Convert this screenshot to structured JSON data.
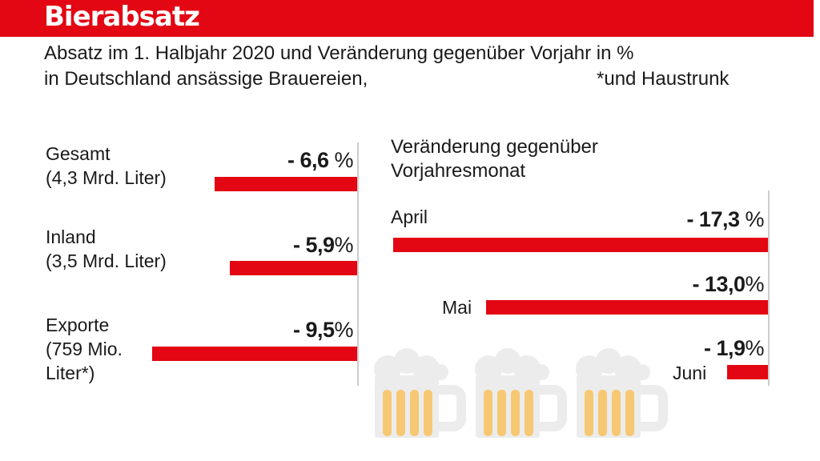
{
  "title": "Bierabsatz",
  "subtitle_line1": "Absatz im 1. Halbjahr 2020 und Veränderung gegenüber Vorjahr in %",
  "subtitle_line2": "in Deutschland ansässige Brauereien,",
  "subtitle_note": "*und Haustrunk",
  "colors": {
    "accent": "#e30613",
    "beer": "#f7c873",
    "foam": "#ececec"
  },
  "icons": [
    "beer-mug-icon",
    "beer-mug-icon",
    "beer-mug-icon"
  ],
  "chart_data": [
    {
      "type": "bar",
      "orientation": "horizontal",
      "categories": [
        "Gesamt (4,3 Mrd. Liter)",
        "Inland (3,5 Mrd. Liter)",
        "Exporte (759 Mio. Liter*)"
      ],
      "category_lines": [
        [
          "Gesamt",
          "(4,3 Mrd. Liter)"
        ],
        [
          "Inland",
          "(3,5 Mrd. Liter)"
        ],
        [
          "Exporte",
          "(759 Mio.",
          "Liter*)"
        ]
      ],
      "values": [
        -6.6,
        -5.9,
        -9.5
      ],
      "value_labels": [
        "- 6,6",
        "- 5,9",
        "- 9,5"
      ],
      "value_units": [
        " %",
        "%",
        "%"
      ],
      "title": ""
    },
    {
      "type": "bar",
      "orientation": "horizontal",
      "title": "Veränderung gegenüber Vorjahresmonat",
      "title_lines": [
        "Veränderung gegenüber",
        "Vorjahresmonat"
      ],
      "categories": [
        "April",
        "Mai",
        "Juni"
      ],
      "values": [
        -17.3,
        -13.0,
        -1.9
      ],
      "value_labels": [
        "- 17,3",
        "- 13,0",
        "- 1,9"
      ],
      "value_units": [
        " %",
        "%",
        "%"
      ]
    }
  ]
}
